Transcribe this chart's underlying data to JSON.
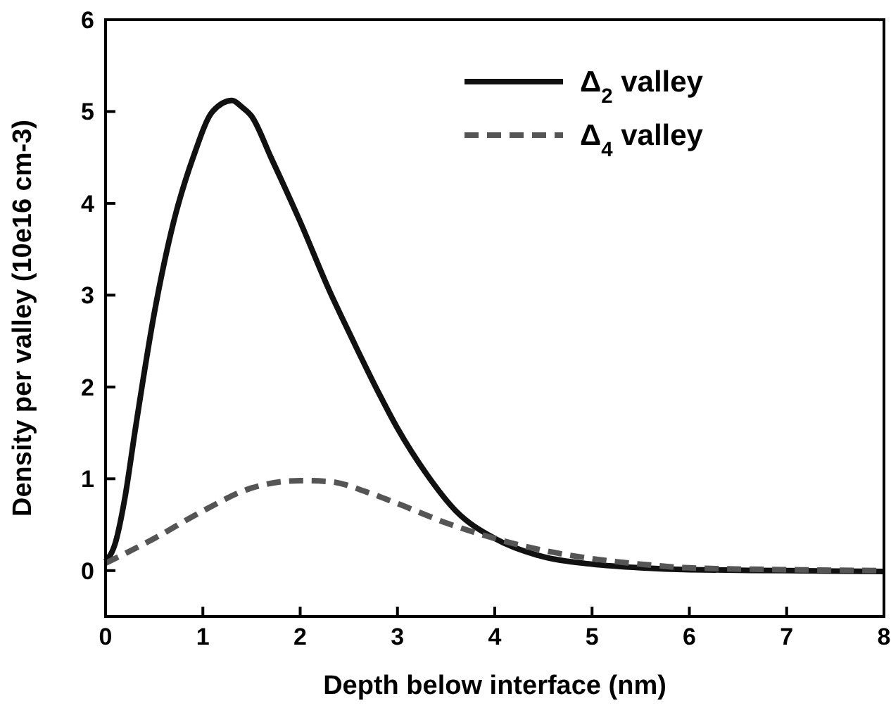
{
  "chart_data": {
    "type": "line",
    "xlabel": "Depth below interface (nm)",
    "ylabel": "Density per valley (10e16 cm-3)",
    "xlim": [
      0,
      8
    ],
    "ylim": [
      -0.5,
      6
    ],
    "xticks": [
      0,
      1,
      2,
      3,
      4,
      5,
      6,
      7,
      8
    ],
    "yticks": [
      0,
      1,
      2,
      3,
      4,
      5,
      6
    ],
    "grid": false,
    "legend": "top right",
    "series": [
      {
        "name": "Δ$_{2}$ valley",
        "color": "#111111",
        "line_style": "solid",
        "x": [
          0,
          0.1,
          0.2,
          0.3,
          0.5,
          0.7,
          0.9,
          1.1,
          1.3,
          1.4,
          1.5,
          1.7,
          2.0,
          2.3,
          2.5,
          2.8,
          3.0,
          3.3,
          3.6,
          4.0,
          4.5,
          5.0,
          5.5,
          6.0,
          7.0,
          8.0
        ],
        "values": [
          0.1,
          0.3,
          0.8,
          1.5,
          2.8,
          3.8,
          4.5,
          5.0,
          5.12,
          5.05,
          4.95,
          4.5,
          3.8,
          3.05,
          2.6,
          1.95,
          1.55,
          1.05,
          0.65,
          0.35,
          0.15,
          0.07,
          0.03,
          0.01,
          0,
          -0.01
        ]
      },
      {
        "name": "Δ$_{4}$ valley",
        "color": "#555555",
        "line_style": "dashed",
        "x": [
          0,
          0.5,
          1.0,
          1.5,
          2.0,
          2.3,
          2.7,
          3.0,
          3.5,
          4.0,
          4.5,
          5.0,
          5.5,
          6.0,
          7.0,
          8.0
        ],
        "values": [
          0.08,
          0.35,
          0.65,
          0.9,
          0.98,
          0.97,
          0.85,
          0.73,
          0.52,
          0.35,
          0.22,
          0.13,
          0.07,
          0.03,
          0.01,
          0
        ]
      }
    ]
  }
}
